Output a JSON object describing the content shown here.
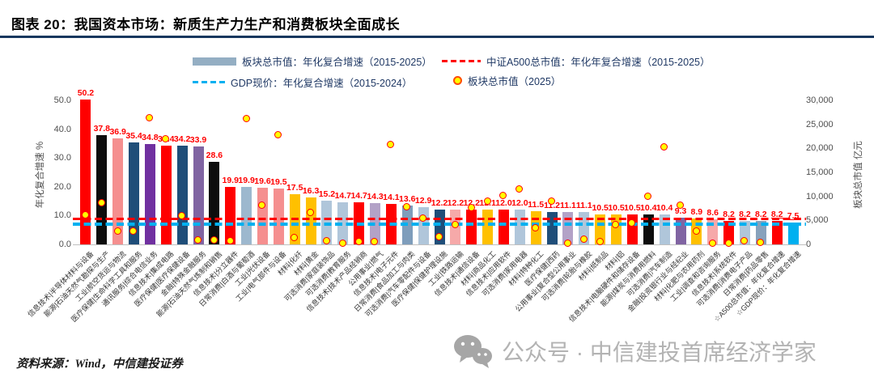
{
  "title": "图表 20：我国资本市场：新质生产力生产和消费板块全面成长",
  "footer": {
    "source": "资料来源：Wind，中信建投证券"
  },
  "watermark": {
    "text": "公众号 · 中信建投首席经济学家"
  },
  "legend": {
    "items": [
      {
        "label": "板块总市值：年化复合增速（2015-2025）",
        "swatch": "bar",
        "color": "#94AEC3"
      },
      {
        "label": "中证A500总市值：年化年复合增速（2015-2025）",
        "swatch": "dash",
        "color": "#FF0000"
      },
      {
        "label": "GDP现价：年化复合增速（2015-2024）",
        "swatch": "dash",
        "color": "#00B0F0"
      },
      {
        "label": "板块总市值（2025）",
        "swatch": "dot",
        "color": "#FFFF00"
      }
    ]
  },
  "chart_data": {
    "type": "bar",
    "title": "图表 20：我国资本市场：新质生产力生产和消费板块全面成长",
    "left_axis": {
      "title": "年化复合增速 %",
      "ticks": [
        0,
        10,
        20,
        30,
        40,
        50
      ],
      "range": [
        0,
        50
      ]
    },
    "right_axis": {
      "title": "板块总市值 亿元",
      "ticks": [
        0,
        5000,
        10000,
        15000,
        20000,
        25000,
        30000
      ],
      "range": [
        0,
        30000
      ]
    },
    "ref_lines": [
      {
        "name": "中证A500总市值：年化年复合增速（2015-2025）",
        "value": 8.2,
        "color": "#FF0000"
      },
      {
        "name": "GDP现价：年化复合增速（2015-2024）",
        "value": 7.5,
        "color": "#00B0F0"
      }
    ],
    "series_note": "growth = 年化复合增速(%, 左轴柱形); mktcap_2025 = 板块总市值2025(亿元, 右轴圆点, 估读值)",
    "bars": [
      {
        "label": "信息技术|半导体材料与设备",
        "growth": 50.2,
        "color": "#FF0000",
        "mktcap_2025": 6100
      },
      {
        "label": "能源|石油天然气勘探与生产",
        "growth": 37.8,
        "color": "#0D0D0D",
        "mktcap_2025": 8600
      },
      {
        "label": "工业|航空货运与物流",
        "growth": 36.9,
        "color": "#F58F8F",
        "mktcap_2025": 2700
      },
      {
        "label": "医疗保健|生命科学工具和服务",
        "growth": 35.4,
        "color": "#1F4E79",
        "mktcap_2025": 2700
      },
      {
        "label": "通讯服务|综合电信业务",
        "growth": 34.8,
        "color": "#7030A0",
        "mktcap_2025": 26300
      },
      {
        "label": "信息技术|集成电路",
        "growth": 34.4,
        "color": "#FF0000",
        "mktcap_2025": 21900
      },
      {
        "label": "医疗保健|医疗保健设备",
        "growth": 34.2,
        "color": "#1F4E79",
        "mktcap_2025": 5900
      },
      {
        "label": "金融|特殊金融服务",
        "growth": 33.9,
        "color": "#8064A2",
        "mktcap_2025": 850
      },
      {
        "label": "能源|石油天然气炼制和销售",
        "growth": 28.6,
        "color": "#0D0D0D",
        "mktcap_2025": 850
      },
      {
        "label": "信息技术|分立器件",
        "growth": 19.9,
        "color": "#FF0000",
        "mktcap_2025": 650
      },
      {
        "label": "日常消费|白酒与葡萄酒",
        "growth": 19.9,
        "color": "#9DB8CE",
        "mktcap_2025": 26100
      },
      {
        "label": "工业|光伏设备",
        "growth": 19.6,
        "color": "#F58F8F",
        "mktcap_2025": 8100
      },
      {
        "label": "工业|电气部件与设备",
        "growth": 19.5,
        "color": "#F58F8F",
        "mktcap_2025": 22800
      },
      {
        "label": "材料|化纤",
        "growth": 17.5,
        "color": "#FFC000",
        "mktcap_2025": 1400
      },
      {
        "label": "材料|黄金",
        "growth": 16.3,
        "color": "#FFC000",
        "mktcap_2025": 6500
      },
      {
        "label": "可选消费|家庭装饰品",
        "growth": 15.2,
        "color": "#B0C6DA",
        "mktcap_2025": 700
      },
      {
        "label": "可选消费|教育服务",
        "growth": 14.7,
        "color": "#B0C6DA",
        "mktcap_2025": 200
      },
      {
        "label": "信息技术|技术产品经销商",
        "growth": 14.7,
        "color": "#FF0000",
        "mktcap_2025": 500
      },
      {
        "label": "公用事业|燃气",
        "growth": 14.3,
        "color": "#B3A2C7",
        "mktcap_2025": 500
      },
      {
        "label": "信息技术|电子元件",
        "growth": 14.1,
        "color": "#FF0000",
        "mktcap_2025": 20700
      },
      {
        "label": "日常消费|食品加工与肉类",
        "growth": 13.6,
        "color": "#7E9DBB",
        "mktcap_2025": 7800
      },
      {
        "label": "可选消费|汽车零配件与设备",
        "growth": 12.9,
        "color": "#B0C6DA",
        "mktcap_2025": 5400
      },
      {
        "label": "医疗保健|保健护理设施",
        "growth": 12.2,
        "color": "#1F4E79",
        "mktcap_2025": 1500
      },
      {
        "label": "工业|铁路运输",
        "growth": 12.2,
        "color": "#F6A9A9",
        "mktcap_2025": 4000
      },
      {
        "label": "信息技术|通信设备",
        "growth": 12.2,
        "color": "#FF0000",
        "mktcap_2025": 7600
      },
      {
        "label": "材料|商品化工",
        "growth": 12.1,
        "color": "#FFC000",
        "mktcap_2025": 8900
      },
      {
        "label": "信息技术|应用软件",
        "growth": 12.0,
        "color": "#FF0000",
        "mktcap_2025": 10100
      },
      {
        "label": "可选消费|家用电器",
        "growth": 12.0,
        "color": "#B0C6DA",
        "mktcap_2025": 11500
      },
      {
        "label": "材料|特种化工",
        "growth": 11.5,
        "color": "#FFC000",
        "mktcap_2025": 3400
      },
      {
        "label": "医疗保健|西药",
        "growth": 11.2,
        "color": "#1F4E79",
        "mktcap_2025": 8900
      },
      {
        "label": "公用事业|复合型公用事业",
        "growth": 11.1,
        "color": "#B3A2C7",
        "mktcap_2025": 200
      },
      {
        "label": "可选消费|轮胎与橡胶",
        "growth": 11.1,
        "color": "#B0C6DA",
        "mktcap_2025": 1000
      },
      {
        "label": "材料|纸制品",
        "growth": 10.5,
        "color": "#FFC000",
        "mktcap_2025": 500
      },
      {
        "label": "材料|铝",
        "growth": 10.5,
        "color": "#FFC000",
        "mktcap_2025": 4000
      },
      {
        "label": "信息技术|电脑硬件和储存设备",
        "growth": 10.5,
        "color": "#FF0000",
        "mktcap_2025": 4300
      },
      {
        "label": "能源|煤炭与消费用燃料",
        "growth": 10.4,
        "color": "#0D0D0D",
        "mktcap_2025": 10000
      },
      {
        "label": "可选消费|汽车制造",
        "growth": 10.4,
        "color": "#B0C6DA",
        "mktcap_2025": 20200
      },
      {
        "label": "金融|投资银行业与经纪业",
        "growth": 9.3,
        "color": "#8064A2",
        "mktcap_2025": 8100
      },
      {
        "label": "材料|化肥与农用药剂",
        "growth": 8.9,
        "color": "#FFC000",
        "mktcap_2025": 2700
      },
      {
        "label": "工业|调查和咨询服务",
        "growth": 8.6,
        "color": "#F6A9A9",
        "mktcap_2025": 150
      },
      {
        "label": "信息技术|系统软件",
        "growth": 8.2,
        "color": "#FF0000",
        "mktcap_2025": 150
      },
      {
        "label": "可选消费|消费电子产品",
        "growth": 8.2,
        "color": "#B0C6DA",
        "mktcap_2025": 600
      },
      {
        "label": "日常消费|药品零售",
        "growth": 8.2,
        "color": "#87A2BC",
        "mktcap_2025": 250
      },
      {
        "label": "☆A500总市值：年化复合增速",
        "growth": 8.2,
        "color": "#FF0000",
        "mktcap_2025": null,
        "underline": true
      },
      {
        "label": "☆GDP现价：年化复合增速",
        "growth": 7.5,
        "color": "#00B0F0",
        "mktcap_2025": null,
        "underline": true
      }
    ]
  }
}
